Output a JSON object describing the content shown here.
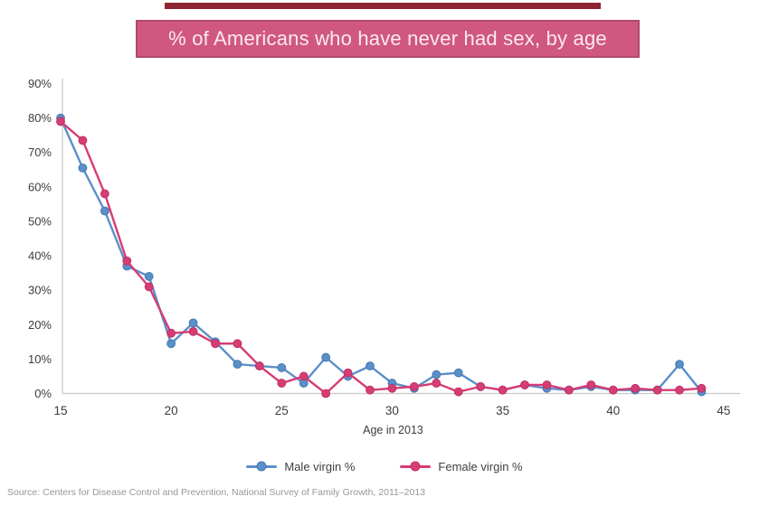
{
  "title": "% of Americans who have never had sex, by age",
  "source": "Source: Centers for Disease Control and Prevention, National Survey of Family Growth, 2011–2013",
  "colors": {
    "top_bar": "#8e2433",
    "banner_background": "#d05880",
    "banner_border": "#b04a6e",
    "banner_text": "#fbe9f1",
    "axis_line": "#c9c9c9",
    "tick_text": "#3c3c3c",
    "source_text": "#979797",
    "male_line": "#5b8fc9",
    "male_marker_edge": "#4579ad",
    "female_line": "#d63d75",
    "female_marker_edge": "#bf2f63"
  },
  "chart_data": {
    "type": "line",
    "title": "% of Americans who have never had sex, by age",
    "xlabel": "Age in 2013",
    "ylabel": "",
    "xlim": [
      15,
      45
    ],
    "ylim": [
      0,
      90
    ],
    "xticks": [
      15,
      20,
      25,
      30,
      35,
      40,
      45
    ],
    "yticks": [
      0,
      10,
      20,
      30,
      40,
      50,
      60,
      70,
      80,
      90
    ],
    "ytick_suffix": "%",
    "grid": false,
    "legend_position": "bottom-center",
    "x": [
      15,
      16,
      17,
      18,
      19,
      20,
      21,
      22,
      23,
      24,
      25,
      26,
      27,
      28,
      29,
      30,
      31,
      32,
      33,
      34,
      35,
      36,
      37,
      38,
      39,
      40,
      41,
      42,
      43,
      44
    ],
    "series": [
      {
        "name": "Male virgin %",
        "color": "#5b8fc9",
        "edge": "#4579ad",
        "values": [
          80,
          65.5,
          53,
          37,
          34,
          14.5,
          20.5,
          15,
          8.5,
          8,
          7.5,
          3,
          10.5,
          5,
          8,
          3,
          1.5,
          5.5,
          6,
          2,
          1,
          2.5,
          1.5,
          1,
          2,
          1,
          1,
          1,
          8.5,
          0.5
        ]
      },
      {
        "name": "Female virgin %",
        "color": "#d63d75",
        "edge": "#bf2f63",
        "values": [
          79,
          73.5,
          58,
          38.5,
          31,
          17.5,
          18,
          14.5,
          14.5,
          8,
          3,
          5,
          0,
          6,
          1,
          1.5,
          2,
          3,
          0.5,
          2,
          1,
          2.5,
          2.5,
          1,
          2.5,
          1,
          1.5,
          1,
          1,
          1.5
        ]
      }
    ]
  }
}
